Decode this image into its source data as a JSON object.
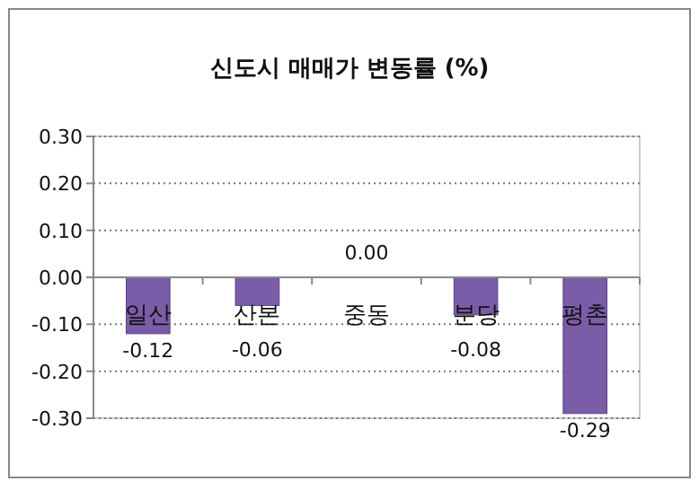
{
  "chart_data": {
    "type": "bar",
    "title": "신도시 매매가 변동률 (%)",
    "categories": [
      "일산",
      "산본",
      "중동",
      "분당",
      "평촌"
    ],
    "values": [
      -0.12,
      -0.06,
      0.0,
      -0.08,
      -0.29
    ],
    "color": "#7b5ca8",
    "ylim": [
      -0.3,
      0.3
    ],
    "yticks": [
      {
        "value": -0.3,
        "label": "-0.30"
      },
      {
        "value": -0.2,
        "label": "-0.20"
      },
      {
        "value": -0.1,
        "label": "-0.10"
      },
      {
        "value": 0,
        "label": "0.00"
      },
      {
        "value": 0.1,
        "label": "0.10"
      },
      {
        "value": 0.2,
        "label": "0.20"
      },
      {
        "value": 0.3,
        "label": "0.30"
      }
    ],
    "grid": "y",
    "value_labels": [
      "-0.12",
      "-0.06",
      "0.00",
      "-0.08",
      "-0.29"
    ]
  }
}
